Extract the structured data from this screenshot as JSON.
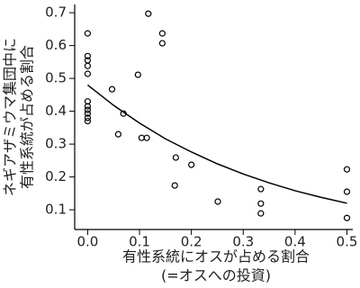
{
  "chart_data": {
    "type": "scatter",
    "xlabel": [
      "有性系統にオスが占める割合",
      "(=オスへの投資)"
    ],
    "ylabel": [
      "ネギアザミウマ集団中に",
      "有性系統が占める割合"
    ],
    "xlim": [
      -0.025,
      0.52
    ],
    "ylim": [
      0.04,
      0.725
    ],
    "xticks": [
      {
        "value": 0,
        "label": "0.0"
      },
      0.1,
      0.2,
      0.3,
      0.4,
      0.5
    ],
    "yticks": [
      0.1,
      0.2,
      0.3,
      0.4,
      0.5,
      0.6,
      0.7
    ],
    "series": [
      {
        "type": "scatter",
        "color": "#000000",
        "x": [
          0,
          0,
          0,
          0,
          0,
          0,
          0,
          0,
          0,
          0,
          0,
          0.047,
          0.069,
          0.059,
          0.097,
          0.117,
          0.104,
          0.114,
          0.144,
          0.144,
          0.17,
          0.2,
          0.168,
          0.251,
          0.334,
          0.334,
          0.334,
          0.5,
          0.5,
          0.5
        ],
        "values": [
          0.637,
          0.568,
          0.555,
          0.538,
          0.514,
          0.43,
          0.415,
          0.404,
          0.393,
          0.38,
          0.37,
          0.467,
          0.393,
          0.33,
          0.511,
          0.697,
          0.319,
          0.319,
          0.637,
          0.607,
          0.259,
          0.237,
          0.174,
          0.125,
          0.163,
          0.119,
          0.089,
          0.223,
          0.155,
          0.075
        ]
      },
      {
        "type": "line",
        "color": "#000000",
        "x": [
          0,
          0.05,
          0.1,
          0.15,
          0.2,
          0.25,
          0.3,
          0.35,
          0.4,
          0.45,
          0.5
        ],
        "values": [
          0.48,
          0.418,
          0.364,
          0.316,
          0.276,
          0.24,
          0.209,
          0.182,
          0.158,
          0.138,
          0.12
        ]
      }
    ]
  }
}
